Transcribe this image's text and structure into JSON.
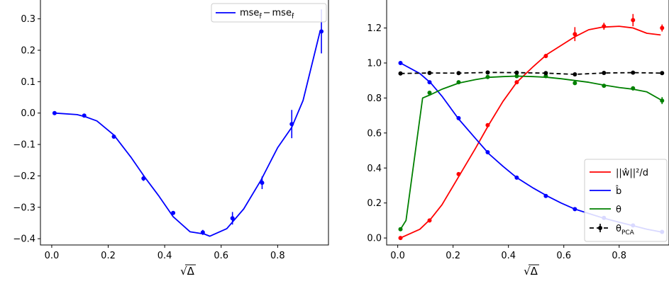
{
  "chart_data": [
    {
      "type": "line",
      "title": "",
      "xlabel": "√Δ",
      "ylabel": "",
      "xlim": [
        -0.04,
        0.98
      ],
      "ylim": [
        -0.42,
        0.36
      ],
      "xticks": [
        0.0,
        0.2,
        0.4,
        0.6,
        0.8
      ],
      "xtick_labels": [
        "0.0",
        "0.2",
        "0.4",
        "0.6",
        "0.8"
      ],
      "yticks": [
        -0.4,
        -0.3,
        -0.2,
        -0.1,
        0.0,
        0.1,
        0.2,
        0.3
      ],
      "ytick_labels": [
        "−0.4",
        "−0.3",
        "−0.2",
        "−0.1",
        "0.0",
        "0.1",
        "0.2",
        "0.3"
      ],
      "grid": false,
      "legend_position": "top-right",
      "series": [
        {
          "name": "mse_f̂ − mse_f̂",
          "legend_label": "mse",
          "legend_label_b": "mse",
          "legend_sub": "f̂",
          "color": "#0000ff",
          "style": "solid",
          "line": {
            "x": [
              0.01,
              0.09,
              0.12,
              0.16,
              0.22,
              0.28,
              0.33,
              0.38,
              0.43,
              0.49,
              0.54,
              0.56,
              0.62,
              0.68,
              0.74,
              0.8,
              0.85,
              0.89,
              0.95
            ],
            "y": [
              0.0,
              -0.005,
              -0.012,
              -0.025,
              -0.07,
              -0.14,
              -0.205,
              -0.265,
              -0.33,
              -0.378,
              -0.385,
              -0.392,
              -0.368,
              -0.305,
              -0.215,
              -0.11,
              -0.045,
              0.04,
              0.26
            ]
          },
          "points": {
            "x": [
              0.01,
              0.115,
              0.22,
              0.325,
              0.43,
              0.535,
              0.64,
              0.745,
              0.85,
              0.955
            ],
            "y": [
              0.0,
              -0.008,
              -0.075,
              -0.208,
              -0.318,
              -0.38,
              -0.335,
              -0.222,
              -0.035,
              0.26
            ],
            "err": [
              0.003,
              0.004,
              0.006,
              0.008,
              0.006,
              0.008,
              0.02,
              0.02,
              0.045,
              0.07
            ]
          }
        }
      ]
    },
    {
      "type": "line",
      "title": "",
      "xlabel": "√Δ",
      "ylabel": "",
      "xlim": [
        -0.04,
        0.98
      ],
      "ylim": [
        -0.04,
        1.36
      ],
      "xticks": [
        0.0,
        0.2,
        0.4,
        0.6,
        0.8
      ],
      "xtick_labels": [
        "0.0",
        "0.2",
        "0.4",
        "0.6",
        "0.8"
      ],
      "yticks": [
        0.0,
        0.2,
        0.4,
        0.6,
        0.8,
        1.0,
        1.2
      ],
      "ytick_labels": [
        "0.0",
        "0.2",
        "0.4",
        "0.6",
        "0.8",
        "1.0",
        "1.2"
      ],
      "grid": false,
      "legend_position": "lower-right",
      "series": [
        {
          "name": "||ŵ||²/d",
          "legend_label": "||ŵ||²/d",
          "color": "#ff0000",
          "style": "solid",
          "line": {
            "x": [
              0.01,
              0.08,
              0.12,
              0.16,
              0.22,
              0.28,
              0.33,
              0.38,
              0.43,
              0.49,
              0.54,
              0.59,
              0.64,
              0.69,
              0.74,
              0.8,
              0.85,
              0.9,
              0.95
            ],
            "y": [
              0.0,
              0.05,
              0.11,
              0.19,
              0.35,
              0.51,
              0.65,
              0.78,
              0.89,
              0.98,
              1.05,
              1.1,
              1.15,
              1.19,
              1.205,
              1.21,
              1.2,
              1.17,
              1.16
            ]
          },
          "points": {
            "x": [
              0.01,
              0.115,
              0.22,
              0.325,
              0.43,
              0.535,
              0.64,
              0.745,
              0.85,
              0.955
            ],
            "y": [
              0.0,
              0.1,
              0.365,
              0.645,
              0.89,
              1.04,
              1.165,
              1.21,
              1.245,
              1.2
            ],
            "err": [
              0.004,
              0.005,
              0.008,
              0.01,
              0.01,
              0.012,
              0.04,
              0.02,
              0.035,
              0.02
            ]
          }
        },
        {
          "name": "b̂",
          "legend_label": "b̂",
          "color": "#0000ff",
          "style": "solid",
          "line": {
            "x": [
              0.01,
              0.08,
              0.12,
              0.16,
              0.22,
              0.28,
              0.33,
              0.38,
              0.43,
              0.49,
              0.54,
              0.59,
              0.64,
              0.69,
              0.74,
              0.8,
              0.85,
              0.9,
              0.95
            ],
            "y": [
              1.0,
              0.94,
              0.885,
              0.81,
              0.68,
              0.57,
              0.48,
              0.41,
              0.345,
              0.285,
              0.24,
              0.2,
              0.165,
              0.14,
              0.115,
              0.09,
              0.07,
              0.05,
              0.035
            ]
          },
          "points": {
            "x": [
              0.01,
              0.115,
              0.22,
              0.325,
              0.43,
              0.535,
              0.64,
              0.745,
              0.85,
              0.955
            ],
            "y": [
              1.0,
              0.89,
              0.685,
              0.49,
              0.345,
              0.24,
              0.165,
              0.115,
              0.072,
              0.035
            ],
            "err": [
              0.003,
              0.003,
              0.004,
              0.004,
              0.004,
              0.004,
              0.004,
              0.004,
              0.004,
              0.004
            ]
          }
        },
        {
          "name": "θ",
          "legend_label": "θ",
          "color": "#008000",
          "style": "solid",
          "line": {
            "x": [
              0.01,
              0.03,
              0.09,
              0.12,
              0.16,
              0.22,
              0.28,
              0.33,
              0.38,
              0.43,
              0.49,
              0.54,
              0.59,
              0.64,
              0.69,
              0.74,
              0.8,
              0.85,
              0.9,
              0.95
            ],
            "y": [
              0.05,
              0.1,
              0.8,
              0.82,
              0.85,
              0.885,
              0.905,
              0.918,
              0.922,
              0.925,
              0.922,
              0.918,
              0.91,
              0.9,
              0.89,
              0.875,
              0.86,
              0.85,
              0.835,
              0.79
            ]
          },
          "points": {
            "x": [
              0.01,
              0.115,
              0.22,
              0.325,
              0.43,
              0.535,
              0.64,
              0.745,
              0.85,
              0.955
            ],
            "y": [
              0.05,
              0.83,
              0.89,
              0.92,
              0.925,
              0.925,
              0.885,
              0.87,
              0.855,
              0.785
            ],
            "err": [
              0.004,
              0.006,
              0.006,
              0.006,
              0.006,
              0.006,
              0.01,
              0.01,
              0.012,
              0.02
            ]
          }
        },
        {
          "name": "θ_PCA",
          "legend_label": "θ",
          "legend_sub": "PCA",
          "color": "#000000",
          "style": "dashed",
          "line": {
            "x": [
              0.01,
              0.115,
              0.22,
              0.325,
              0.43,
              0.535,
              0.64,
              0.745,
              0.85,
              0.955
            ],
            "y": [
              0.94,
              0.943,
              0.942,
              0.946,
              0.945,
              0.942,
              0.935,
              0.943,
              0.945,
              0.942
            ]
          },
          "points": {
            "x": [
              0.01,
              0.115,
              0.22,
              0.325,
              0.43,
              0.535,
              0.64,
              0.745,
              0.85,
              0.955
            ],
            "y": [
              0.94,
              0.943,
              0.942,
              0.946,
              0.945,
              0.942,
              0.935,
              0.943,
              0.945,
              0.942
            ],
            "err": [
              0.006,
              0.006,
              0.006,
              0.006,
              0.006,
              0.006,
              0.006,
              0.006,
              0.006,
              0.006
            ]
          }
        }
      ]
    }
  ]
}
